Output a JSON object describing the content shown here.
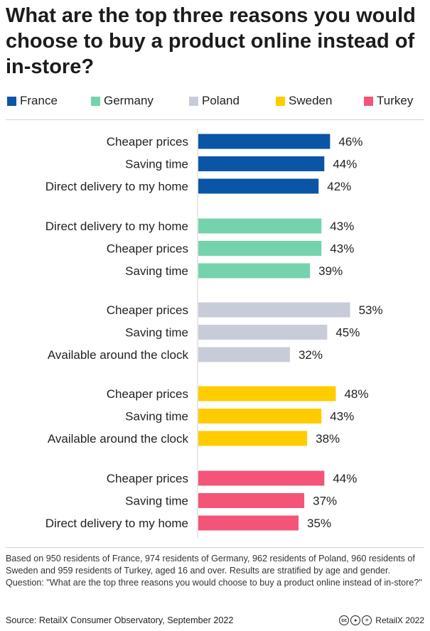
{
  "title": "What are the top three reasons you would choose to buy a product online instead of in-store?",
  "legend": [
    {
      "label": "France",
      "color": "#0a55a5"
    },
    {
      "label": "Germany",
      "color": "#74d3ad"
    },
    {
      "label": "Poland",
      "color": "#c8ccd8"
    },
    {
      "label": "Sweden",
      "color": "#ffcc00"
    },
    {
      "label": "Turkey",
      "color": "#f45477"
    }
  ],
  "chart_data": {
    "type": "bar",
    "orientation": "horizontal",
    "unit": "%",
    "xlim": [
      0,
      60
    ],
    "grid": false,
    "legend_position": "top",
    "groups": [
      {
        "name": "France",
        "color": "#0a55a5",
        "categories": [
          "Cheaper prices",
          "Saving time",
          "Direct delivery to my home"
        ],
        "values": [
          46,
          44,
          42
        ]
      },
      {
        "name": "Germany",
        "color": "#74d3ad",
        "categories": [
          "Direct delivery to my home",
          "Cheaper prices",
          "Saving time"
        ],
        "values": [
          43,
          43,
          39
        ]
      },
      {
        "name": "Poland",
        "color": "#c8ccd8",
        "categories": [
          "Cheaper prices",
          "Saving time",
          "Available around the clock"
        ],
        "values": [
          53,
          45,
          32
        ]
      },
      {
        "name": "Sweden",
        "color": "#ffcc00",
        "categories": [
          "Cheaper prices",
          "Saving time",
          "Available around the clock"
        ],
        "values": [
          48,
          43,
          38
        ]
      },
      {
        "name": "Turkey",
        "color": "#f45477",
        "categories": [
          "Cheaper prices",
          "Saving time",
          "Direct delivery to my home"
        ],
        "values": [
          44,
          37,
          35
        ]
      }
    ]
  },
  "footnote": "Based on 950 residents of France, 974 residents of Germany, 962 residents of Poland, 960 residents of Sweden and 959 residents of Turkey, aged 16 and over. Results are stratified by age and gender. Question: \"What are the top three reasons you would choose to buy a product online instead of in-store?\"",
  "source": "Source: RetailX Consumer Observatory, September 2022",
  "credit": {
    "icons": [
      "cc-icon",
      "by-icon",
      "nd-icon"
    ],
    "text": "RetailX 2022"
  }
}
